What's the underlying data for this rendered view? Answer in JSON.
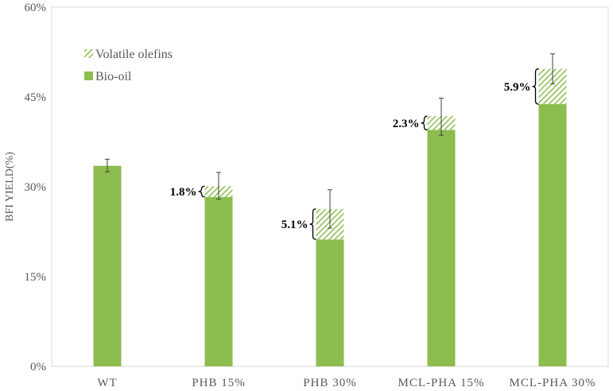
{
  "chart_data": {
    "type": "bar",
    "stacked": true,
    "categories": [
      "WT",
      "PHB 15%",
      "PHB 30%",
      "MCL-PHA 15%",
      "MCL-PHA 30%"
    ],
    "series": [
      {
        "name": "Bio-oil",
        "values": [
          33.5,
          28.3,
          21.2,
          39.5,
          43.8
        ],
        "color": "#8cbd4e",
        "pattern": "solid"
      },
      {
        "name": "Volatile olefins",
        "values": [
          0,
          1.8,
          5.1,
          2.3,
          5.9
        ],
        "color": "#8cbd4e",
        "pattern": "diagonal-hatch"
      }
    ],
    "error_bars": {
      "upper": [
        34.6,
        32.4,
        29.5,
        44.8,
        52.2
      ],
      "lower": [
        32.5,
        27.9,
        23.1,
        38.6,
        47.2
      ]
    },
    "annotations": [
      "",
      "1.8%",
      "5.1%",
      "2.3%",
      "5.9%"
    ],
    "ylabel": "BFI YIELD(%)",
    "xlabel": "",
    "ylim": [
      0,
      60
    ],
    "yticks": [
      0,
      15,
      30,
      45,
      60
    ],
    "ytick_labels": [
      "0%",
      "15%",
      "30%",
      "45%",
      "60%"
    ],
    "legend": {
      "placement": "top-left",
      "entries": [
        "Volatile olefins",
        "Bio-oil"
      ]
    },
    "grid": false
  }
}
